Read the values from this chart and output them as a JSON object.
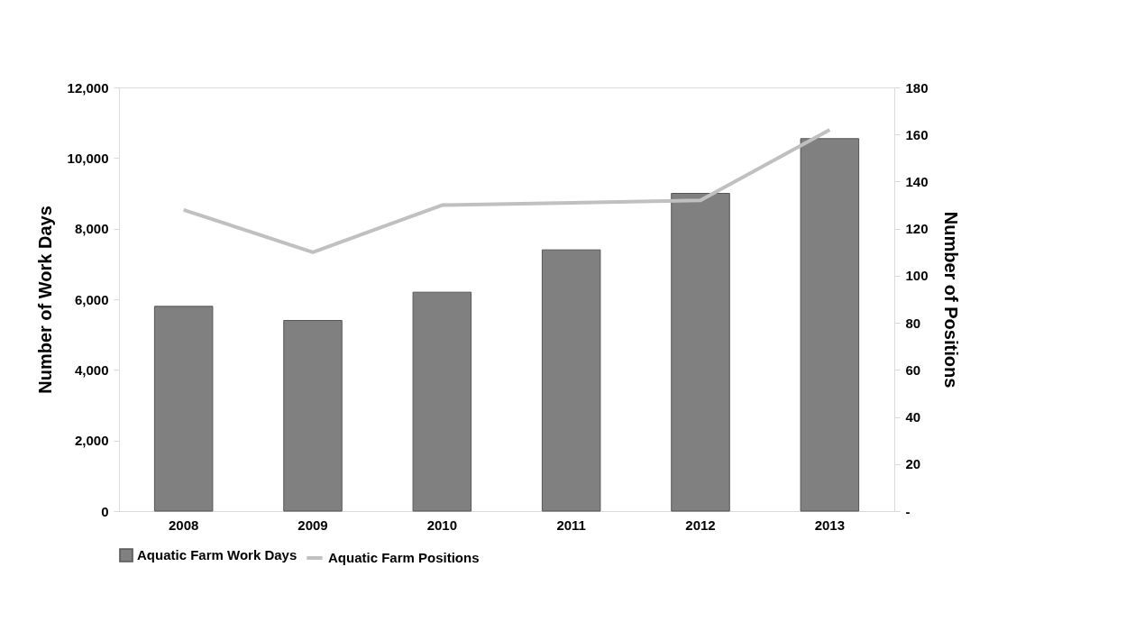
{
  "chart_data": {
    "type": "bar",
    "categories": [
      "2008",
      "2009",
      "2010",
      "2011",
      "2012",
      "2013"
    ],
    "ylabel": "Number of  Work Days",
    "y2label": "Number of Positions",
    "series": [
      {
        "name": "Aquatic Farm Work Days",
        "color": "#808080",
        "values": [
          5800,
          5400,
          6200,
          7400,
          9000,
          10550
        ]
      },
      {
        "name": "Aquatic Farm Positions",
        "color": "#c0c0c0",
        "type": "line",
        "axis": "y2",
        "values": [
          128,
          110,
          130,
          131,
          132,
          162
        ]
      }
    ],
    "ylim": [
      0,
      12000
    ],
    "yticks": [
      0,
      {
        "value": 2000,
        "label": "2,000"
      },
      {
        "value": 4000,
        "label": "4,000"
      },
      {
        "value": 6000,
        "label": "6,000"
      },
      {
        "value": 8000,
        "label": "8,000"
      },
      {
        "value": 10000,
        "label": "10,000"
      },
      {
        "value": 12000,
        "label": "12,000"
      }
    ],
    "y2lim": [
      0,
      180
    ],
    "y2ticks": [
      {
        "value": 0,
        "label": "-"
      },
      20,
      40,
      60,
      80,
      100,
      120,
      140,
      160,
      180
    ],
    "grid": false,
    "legend": "bottom"
  }
}
